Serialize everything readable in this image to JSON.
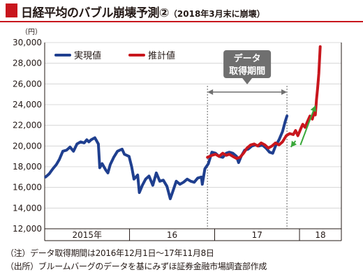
{
  "title": {
    "main": "日経平均のバブル崩壊予測②",
    "sub": "（2018年3月末に崩壊）"
  },
  "notes": {
    "note": "（注）データ取得期間は2016年12月1日〜17年11月8日",
    "source": "（出所）ブルームバーグのデータを基にみずほ証券金融市場調査部作成"
  },
  "colors": {
    "title_accent": "#c8161d",
    "actual": "#1f3f8f",
    "estimate": "#c8161d",
    "trend_arrow": "#3aa83a",
    "annotation": "#6f6f6f"
  },
  "chart_data": {
    "type": "line",
    "y_unit": "（円）",
    "ylim": [
      12000,
      30000
    ],
    "y_ticks": [
      "12,000",
      "14,000",
      "16,000",
      "18,000",
      "20,000",
      "22,000",
      "24,000",
      "26,000",
      "28,000",
      "30,000"
    ],
    "x_axis": {
      "range": [
        "2015-01-01",
        "2018-06-30"
      ],
      "year_boundaries": [
        "2016-01-01",
        "2017-01-01",
        "2018-01-01"
      ],
      "year_labels": [
        "2015年",
        "16",
        "17",
        "18"
      ]
    },
    "legend": {
      "position": "top-left",
      "entries": [
        "実現値",
        "推計値"
      ]
    },
    "annotation": {
      "label_lines": [
        "データ",
        "取得期間"
      ],
      "start": "2016-12-01",
      "end": "2017-11-08"
    },
    "series": [
      {
        "name": "実現値",
        "x": [
          "2015-01-05",
          "2015-01-20",
          "2015-02-05",
          "2015-02-20",
          "2015-03-05",
          "2015-03-20",
          "2015-04-05",
          "2015-04-20",
          "2015-05-05",
          "2015-05-20",
          "2015-06-05",
          "2015-06-20",
          "2015-07-01",
          "2015-07-10",
          "2015-07-20",
          "2015-08-05",
          "2015-08-20",
          "2015-08-26",
          "2015-09-05",
          "2015-09-20",
          "2015-09-30",
          "2015-10-10",
          "2015-10-25",
          "2015-11-10",
          "2015-11-30",
          "2015-12-10",
          "2015-12-30",
          "2016-01-10",
          "2016-01-20",
          "2016-02-05",
          "2016-02-12",
          "2016-02-25",
          "2016-03-10",
          "2016-03-25",
          "2016-04-10",
          "2016-04-25",
          "2016-05-10",
          "2016-05-25",
          "2016-06-10",
          "2016-06-24",
          "2016-07-05",
          "2016-07-20",
          "2016-08-05",
          "2016-08-20",
          "2016-09-05",
          "2016-09-20",
          "2016-10-05",
          "2016-10-20",
          "2016-11-05",
          "2016-11-09",
          "2016-11-20",
          "2016-12-05",
          "2016-12-20",
          "2017-01-05",
          "2017-01-20",
          "2017-02-05",
          "2017-02-20",
          "2017-03-05",
          "2017-03-20",
          "2017-04-05",
          "2017-04-14",
          "2017-04-25",
          "2017-05-10",
          "2017-05-25",
          "2017-06-10",
          "2017-06-25",
          "2017-07-10",
          "2017-07-25",
          "2017-08-10",
          "2017-08-25",
          "2017-09-08",
          "2017-09-20",
          "2017-10-05",
          "2017-10-20",
          "2017-11-01",
          "2017-11-08"
        ],
        "y": [
          17000,
          17300,
          17800,
          18200,
          18700,
          19500,
          19600,
          19900,
          19500,
          20200,
          20400,
          20300,
          20600,
          20400,
          20600,
          20800,
          20200,
          17900,
          18300,
          17700,
          17400,
          18200,
          18900,
          19500,
          19700,
          19200,
          19000,
          18000,
          16800,
          17200,
          15500,
          16200,
          16800,
          17100,
          16200,
          17400,
          16600,
          16700,
          16100,
          14900,
          15600,
          16600,
          16300,
          16500,
          16800,
          16600,
          16500,
          16900,
          17000,
          16300,
          17800,
          18300,
          19400,
          19300,
          19000,
          18900,
          19300,
          19400,
          19300,
          19000,
          18400,
          19000,
          19600,
          19700,
          20000,
          20100,
          20000,
          20100,
          19800,
          19400,
          19300,
          20000,
          20600,
          21400,
          22400,
          22900
        ]
      },
      {
        "name": "推計値",
        "x": [
          "2016-12-01",
          "2016-12-20",
          "2017-01-05",
          "2017-01-20",
          "2017-02-05",
          "2017-02-20",
          "2017-03-05",
          "2017-03-20",
          "2017-04-05",
          "2017-04-20",
          "2017-05-05",
          "2017-05-20",
          "2017-06-05",
          "2017-06-20",
          "2017-07-05",
          "2017-07-20",
          "2017-08-05",
          "2017-08-20",
          "2017-09-05",
          "2017-09-20",
          "2017-10-05",
          "2017-10-20",
          "2017-11-05",
          "2017-11-20",
          "2017-12-05",
          "2017-12-15",
          "2017-12-25",
          "2018-01-05",
          "2018-01-15",
          "2018-01-25",
          "2018-02-05",
          "2018-02-15",
          "2018-02-25",
          "2018-03-05",
          "2018-03-10",
          "2018-03-15",
          "2018-03-20",
          "2018-03-25",
          "2018-03-31"
        ],
        "y": [
          18900,
          19100,
          19200,
          19000,
          19300,
          19100,
          19200,
          19000,
          18800,
          18900,
          19300,
          19800,
          20100,
          20200,
          20000,
          20300,
          20100,
          19800,
          20000,
          20300,
          20100,
          20400,
          21000,
          21200,
          21100,
          21500,
          21000,
          21600,
          22100,
          21800,
          22400,
          22900,
          22600,
          23300,
          23000,
          24500,
          25600,
          27000,
          29600
        ]
      }
    ],
    "trend_arrows": [
      {
        "from": [
          "2017-12-15",
          20500
        ],
        "to": [
          "2017-11-25",
          19900
        ]
      },
      {
        "from": [
          "2018-01-05",
          20100
        ],
        "to": [
          "2018-03-10",
          23900
        ]
      }
    ]
  }
}
